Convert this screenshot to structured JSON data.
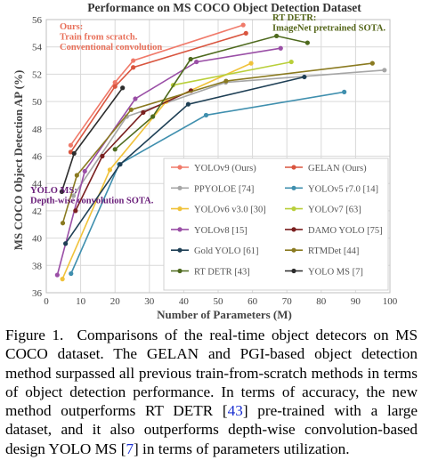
{
  "chart_data": {
    "type": "line",
    "title": "Performance on MS COCO Object Detection Dataset",
    "xlabel": "Number of Parameters (M)",
    "ylabel": "MS COCO Object Detection AP (%)",
    "xlim": [
      0,
      100
    ],
    "ylim": [
      36,
      56
    ],
    "xticks": [
      0,
      10,
      20,
      30,
      40,
      50,
      60,
      70,
      80,
      90,
      100
    ],
    "yticks": [
      36,
      38,
      40,
      42,
      44,
      46,
      48,
      50,
      52,
      54,
      56
    ],
    "grid": true,
    "legend_position": "lower-right",
    "annotations": [
      {
        "id": "ours",
        "lines": [
          "Ours:",
          "Train from scratch.",
          "Conventional convolution"
        ],
        "color": "#e8705a"
      },
      {
        "id": "rtdetr",
        "lines": [
          "RT DETR:",
          "ImageNet pretrained SOTA."
        ],
        "color": "#55661a"
      },
      {
        "id": "yoloms",
        "lines": [
          "YOLO MS:",
          "Depth-wise convolution SOTA."
        ],
        "color": "#6a1f7a"
      }
    ],
    "series": [
      {
        "name": "YOLOv9 (Ours)",
        "color": "#f07a6a",
        "points": [
          [
            7.1,
            46.8
          ],
          [
            20.0,
            51.4
          ],
          [
            25.3,
            53.0
          ],
          [
            57.3,
            55.6
          ]
        ]
      },
      {
        "name": "GELAN (Ours)",
        "color": "#d9553f",
        "points": [
          [
            7.1,
            46.3
          ],
          [
            20.0,
            51.1
          ],
          [
            25.3,
            52.5
          ],
          [
            58.1,
            55.0
          ]
        ]
      },
      {
        "name": "PPYOLOE [74]",
        "color": "#a6a6a6",
        "points": [
          [
            7.9,
            43.1
          ],
          [
            23.4,
            48.9
          ],
          [
            52.2,
            51.4
          ],
          [
            98.4,
            52.3
          ]
        ]
      },
      {
        "name": "YOLOv5 r7.0 [14]",
        "color": "#3f8fae",
        "points": [
          [
            7.2,
            37.4
          ],
          [
            21.2,
            45.4
          ],
          [
            46.5,
            49.0
          ],
          [
            86.7,
            50.7
          ]
        ]
      },
      {
        "name": "YOLOv6 v3.0 [30]",
        "color": "#f0c23a",
        "points": [
          [
            4.7,
            37.0
          ],
          [
            18.5,
            45.0
          ],
          [
            34.9,
            50.0
          ],
          [
            59.6,
            52.8
          ]
        ]
      },
      {
        "name": "YOLOv7 [63]",
        "color": "#b9cf3a",
        "points": [
          [
            36.9,
            51.2
          ],
          [
            71.3,
            52.9
          ]
        ]
      },
      {
        "name": "YOLOv8 [15]",
        "color": "#9a4fa6",
        "points": [
          [
            3.2,
            37.3
          ],
          [
            11.2,
            44.9
          ],
          [
            25.9,
            50.2
          ],
          [
            43.7,
            52.9
          ],
          [
            68.2,
            53.9
          ]
        ]
      },
      {
        "name": "DAMO YOLO [75]",
        "color": "#7a1f1f",
        "points": [
          [
            8.5,
            42.0
          ],
          [
            16.3,
            46.0
          ],
          [
            28.2,
            49.2
          ],
          [
            42.1,
            50.8
          ]
        ]
      },
      {
        "name": "Gold YOLO [61]",
        "color": "#1e3f55",
        "points": [
          [
            5.6,
            39.6
          ],
          [
            21.5,
            45.4
          ],
          [
            41.3,
            49.8
          ],
          [
            75.1,
            51.8
          ]
        ]
      },
      {
        "name": "RTMDet [44]",
        "color": "#8a7a20",
        "points": [
          [
            4.8,
            41.1
          ],
          [
            8.9,
            44.6
          ],
          [
            24.7,
            49.4
          ],
          [
            52.3,
            51.5
          ],
          [
            94.9,
            52.8
          ]
        ]
      },
      {
        "name": "RT DETR [43]",
        "color": "#4e6a1e",
        "points": [
          [
            20.0,
            46.5
          ],
          [
            31.0,
            48.9
          ],
          [
            42.0,
            53.1
          ],
          [
            67.0,
            54.8
          ],
          [
            76.0,
            54.3
          ]
        ]
      },
      {
        "name": "YOLO MS [7]",
        "color": "#2c2c2c",
        "points": [
          [
            4.5,
            43.4
          ],
          [
            8.1,
            46.2
          ],
          [
            22.2,
            51.0
          ]
        ]
      }
    ]
  },
  "caption": {
    "label": "Figure 1.",
    "text_1": "Comparisons of the real-time object detecors on MS COCO dataset. The GELAN and PGI-based object detection method surpassed all previous train-from-scratch methods in terms of object detection performance. In terms of accuracy, the new method outperforms RT DETR [",
    "ref_1": "43",
    "text_2": "] pre-trained with a large dataset, and it also outperforms depth-wise convolution-based design YOLO MS [",
    "ref_2": "7",
    "text_3": "] in terms of parameters utilization."
  }
}
